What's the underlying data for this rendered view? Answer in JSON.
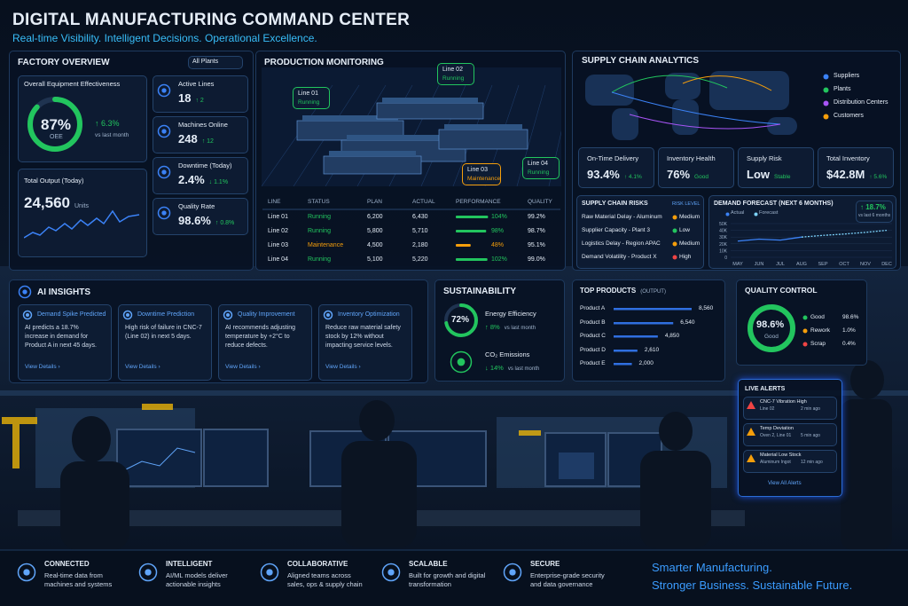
{
  "header": {
    "title": "DIGITAL MANUFACTURING COMMAND CENTER",
    "subtitle": "Real-time Visibility. Intelligent Decisions. Operational Excellence."
  },
  "factory_overview": {
    "title": "FACTORY OVERVIEW",
    "filter": "All Plants",
    "oee": {
      "title": "Overall Equipment Effectiveness",
      "value": 87,
      "label": "87%",
      "caption": "OEE",
      "change": "↑ 6.3%",
      "compare": "vs last month",
      "color": "#22c55e"
    },
    "total_output": {
      "title": "Total Output (Today)",
      "value": "24,560",
      "unit": "Units"
    },
    "kpis": [
      {
        "title": "Active Lines",
        "value": "18",
        "change": "↑ 2"
      },
      {
        "title": "Machines Online",
        "value": "248",
        "change": "↑ 12"
      },
      {
        "title": "Downtime (Today)",
        "value": "2.4%",
        "change": "↓ 1.1%"
      },
      {
        "title": "Quality Rate",
        "value": "98.6%",
        "change": "↑ 0.8%"
      }
    ]
  },
  "production": {
    "title": "PRODUCTION MONITORING",
    "callouts": [
      {
        "line": "Line 01",
        "status": "Running",
        "color": "#22c55e"
      },
      {
        "line": "Line 02",
        "status": "Running",
        "color": "#22c55e"
      },
      {
        "line": "Line 03",
        "status": "Maintenance",
        "color": "#f59e0b"
      },
      {
        "line": "Line 04",
        "status": "Running",
        "color": "#22c55e"
      }
    ],
    "columns": [
      "LINE",
      "STATUS",
      "PLAN",
      "ACTUAL",
      "PERFORMANCE",
      "QUALITY"
    ],
    "rows": [
      {
        "line": "Line 01",
        "status": "Running",
        "plan": "6,200",
        "actual": "6,430",
        "performance": {
          "value": 104,
          "label": "104%"
        },
        "quality": "99.2%",
        "color": "#22c55e"
      },
      {
        "line": "Line 02",
        "status": "Running",
        "plan": "5,800",
        "actual": "5,710",
        "performance": {
          "value": 98,
          "label": "98%"
        },
        "quality": "98.7%",
        "color": "#22c55e"
      },
      {
        "line": "Line 03",
        "status": "Maintenance",
        "plan": "4,500",
        "actual": "2,180",
        "performance": {
          "value": 48,
          "label": "48%"
        },
        "quality": "95.1%",
        "color": "#f59e0b"
      },
      {
        "line": "Line 04",
        "status": "Running",
        "plan": "5,100",
        "actual": "5,220",
        "performance": {
          "value": 102,
          "label": "102%"
        },
        "quality": "99.0%",
        "color": "#22c55e"
      }
    ]
  },
  "supply_chain": {
    "title": "SUPPLY CHAIN ANALYTICS",
    "legend": [
      {
        "name": "Suppliers",
        "color": "#3b82f6"
      },
      {
        "name": "Plants",
        "color": "#22c55e"
      },
      {
        "name": "Distribution Centers",
        "color": "#a855f7"
      },
      {
        "name": "Customers",
        "color": "#f59e0b"
      }
    ],
    "kpis": [
      {
        "title": "On-Time Delivery",
        "value": "93.4%",
        "change": "↑ 4.1%"
      },
      {
        "title": "Inventory Health",
        "value": "76%",
        "change": "Good"
      },
      {
        "title": "Supply Risk",
        "value": "Low",
        "change": "Stable"
      },
      {
        "title": "Total Inventory",
        "value": "$42.8M",
        "change": "↑ 5.6%"
      }
    ],
    "risks": {
      "title": "SUPPLY CHAIN RISKS",
      "column": "RISK LEVEL",
      "rows": [
        {
          "name": "Raw Material Delay - Aluminum",
          "level": "Medium",
          "color": "#f59e0b"
        },
        {
          "name": "Supplier Capacity - Plant 3",
          "level": "Low",
          "color": "#22c55e"
        },
        {
          "name": "Logistics Delay - Region APAC",
          "level": "Medium",
          "color": "#f59e0b"
        },
        {
          "name": "Demand Volatility - Product X",
          "level": "High",
          "color": "#ef4444"
        }
      ]
    },
    "forecast": {
      "type": "line",
      "title": "DEMAND FORECAST (NEXT 6 MONTHS)",
      "change": "↑ 18.7%",
      "compare": "vs last 6 months",
      "categories": [
        "MAY",
        "JUN",
        "JUL",
        "AUG",
        "SEP",
        "OCT",
        "NOV",
        "DEC"
      ],
      "series": [
        {
          "name": "Actual",
          "color": "#3b82f6",
          "values": [
            24000,
            27000,
            25500,
            30000,
            null,
            null,
            null,
            null
          ]
        },
        {
          "name": "Forecast",
          "color": "#7dd3fc",
          "values": [
            null,
            null,
            null,
            30000,
            32500,
            34500,
            37000,
            40000
          ]
        }
      ],
      "ylim": [
        0,
        50000
      ],
      "yticks": [
        0,
        {
          "value": 10000,
          "label": "10K"
        },
        {
          "value": 20000,
          "label": "20K"
        },
        {
          "value": 30000,
          "label": "30K"
        },
        {
          "value": 40000,
          "label": "40K"
        },
        {
          "value": 50000,
          "label": "50K"
        }
      ]
    }
  },
  "ai_insights": {
    "title": "AI INSIGHTS",
    "cards": [
      {
        "title": "Demand Spike Predicted",
        "text": "AI predicts a 18.7% increase in demand for Product A in next 45 days.",
        "link": "View Details ›"
      },
      {
        "title": "Downtime Prediction",
        "text": "High risk of failure in CNC-7 (Line 02) in next 5 days.",
        "link": "View Details ›"
      },
      {
        "title": "Quality Improvement",
        "text": "AI recommends adjusting temperature by +2°C to reduce defects.",
        "link": "View Details ›"
      },
      {
        "title": "Inventory Optimization",
        "text": "Reduce raw material safety stock by 12% without impacting service levels.",
        "link": "View Details ›"
      }
    ]
  },
  "sustainability": {
    "title": "SUSTAINABILITY",
    "energy": {
      "value": 72,
      "label": "72%",
      "title": "Energy Efficiency",
      "change": "↑ 8%",
      "compare": "vs last month",
      "color": "#22c55e"
    },
    "co2": {
      "title": "CO₂ Emissions",
      "change": "↓ 14%",
      "compare": "vs last month"
    }
  },
  "top_products": {
    "title": "TOP PRODUCTS",
    "subtitle": "(OUTPUT)",
    "color": "#2f6fe0",
    "items": [
      {
        "name": "Product A",
        "value": 8560,
        "label": "8,560"
      },
      {
        "name": "Product B",
        "value": 6540,
        "label": "6,540"
      },
      {
        "name": "Product C",
        "value": 4850,
        "label": "4,850"
      },
      {
        "name": "Product D",
        "value": 2610,
        "label": "2,610"
      },
      {
        "name": "Product E",
        "value": 2000,
        "label": "2,000"
      }
    ]
  },
  "quality_control": {
    "title": "QUALITY CONTROL",
    "gauge": {
      "value": 98.6,
      "label": "98.6%",
      "caption": "Good",
      "color": "#22c55e"
    },
    "legend": [
      {
        "name": "Good",
        "value": "98.6%",
        "color": "#22c55e"
      },
      {
        "name": "Rework",
        "value": "1.0%",
        "color": "#f59e0b"
      },
      {
        "name": "Scrap",
        "value": "0.4%",
        "color": "#ef4444"
      }
    ]
  },
  "live_alerts": {
    "title": "LIVE ALERTS",
    "items": [
      {
        "title": "CNC-7 Vibration High",
        "detail": "Line 02",
        "time": "2 min ago",
        "color": "#ef4444"
      },
      {
        "title": "Temp Deviation",
        "detail": "Oven 2, Line 01",
        "time": "5 min ago",
        "color": "#f59e0b"
      },
      {
        "title": "Material Low Stock",
        "detail": "Aluminum Ingot",
        "time": "12 min ago",
        "color": "#f59e0b"
      }
    ],
    "link": "View All Alerts"
  },
  "footer": {
    "features": [
      {
        "title": "CONNECTED",
        "text": "Real-time data from machines and systems"
      },
      {
        "title": "INTELLIGENT",
        "text": "AI/ML models deliver actionable insights"
      },
      {
        "title": "COLLABORATIVE",
        "text": "Aligned teams across sales, ops & supply chain"
      },
      {
        "title": "SCALABLE",
        "text": "Built for growth and digital transformation"
      },
      {
        "title": "SECURE",
        "text": "Enterprise-grade security and data governance"
      }
    ],
    "tagline": [
      "Smarter Manufacturing.",
      "Stronger Business. Sustainable Future."
    ]
  }
}
